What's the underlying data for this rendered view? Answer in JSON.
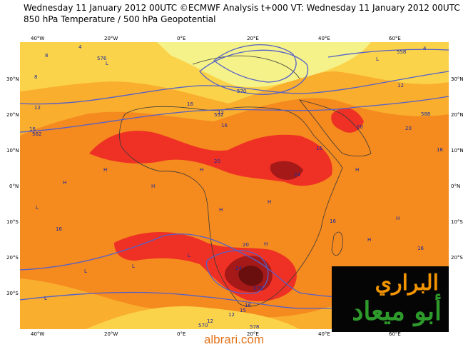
{
  "title_line1": "Wednesday 11 January 2012 00UTC ©ECMWF Analysis t+000 VT: Wednesday 11 January 2012 00UTC",
  "title_line2": "850 hPa Temperature / 500 hPa Geopotential",
  "lon_labels": [
    "40°W",
    "20°W",
    "0°E",
    "20°E",
    "40°E",
    "60°E"
  ],
  "lat_labels": [
    "30°N",
    "20°N",
    "10°N",
    "0°N",
    "10°S",
    "20°S",
    "30°S"
  ],
  "contour_labels": [
    "4",
    "8",
    "12",
    "16",
    "8",
    "16",
    "12",
    "16",
    "20",
    "24",
    "20",
    "16",
    "576",
    "562",
    "570",
    "588",
    "558",
    "552",
    "16",
    "12",
    "4",
    "20",
    "16",
    "16",
    "12",
    "15",
    "20",
    "24",
    "576",
    "16",
    "12",
    "16",
    "570",
    "578"
  ],
  "h_markers": [
    "H",
    "H",
    "H",
    "H",
    "H",
    "H",
    "H",
    "H",
    "H",
    "H"
  ],
  "l_markers": [
    "L",
    "L",
    "L",
    "L",
    "L",
    "L",
    "L"
  ],
  "watermark_line1": "البراري",
  "watermark_line2": "أبو ميعاد",
  "site": "albrari.com",
  "colors": {
    "yellow_pale": "#f5f28a",
    "yellow": "#fbd34a",
    "orange_light": "#f9ae2e",
    "orange": "#f58a1f",
    "red": "#ee3124",
    "dark_red": "#a51919",
    "maroon": "#6b0e0e",
    "contour": "#5560c8"
  }
}
